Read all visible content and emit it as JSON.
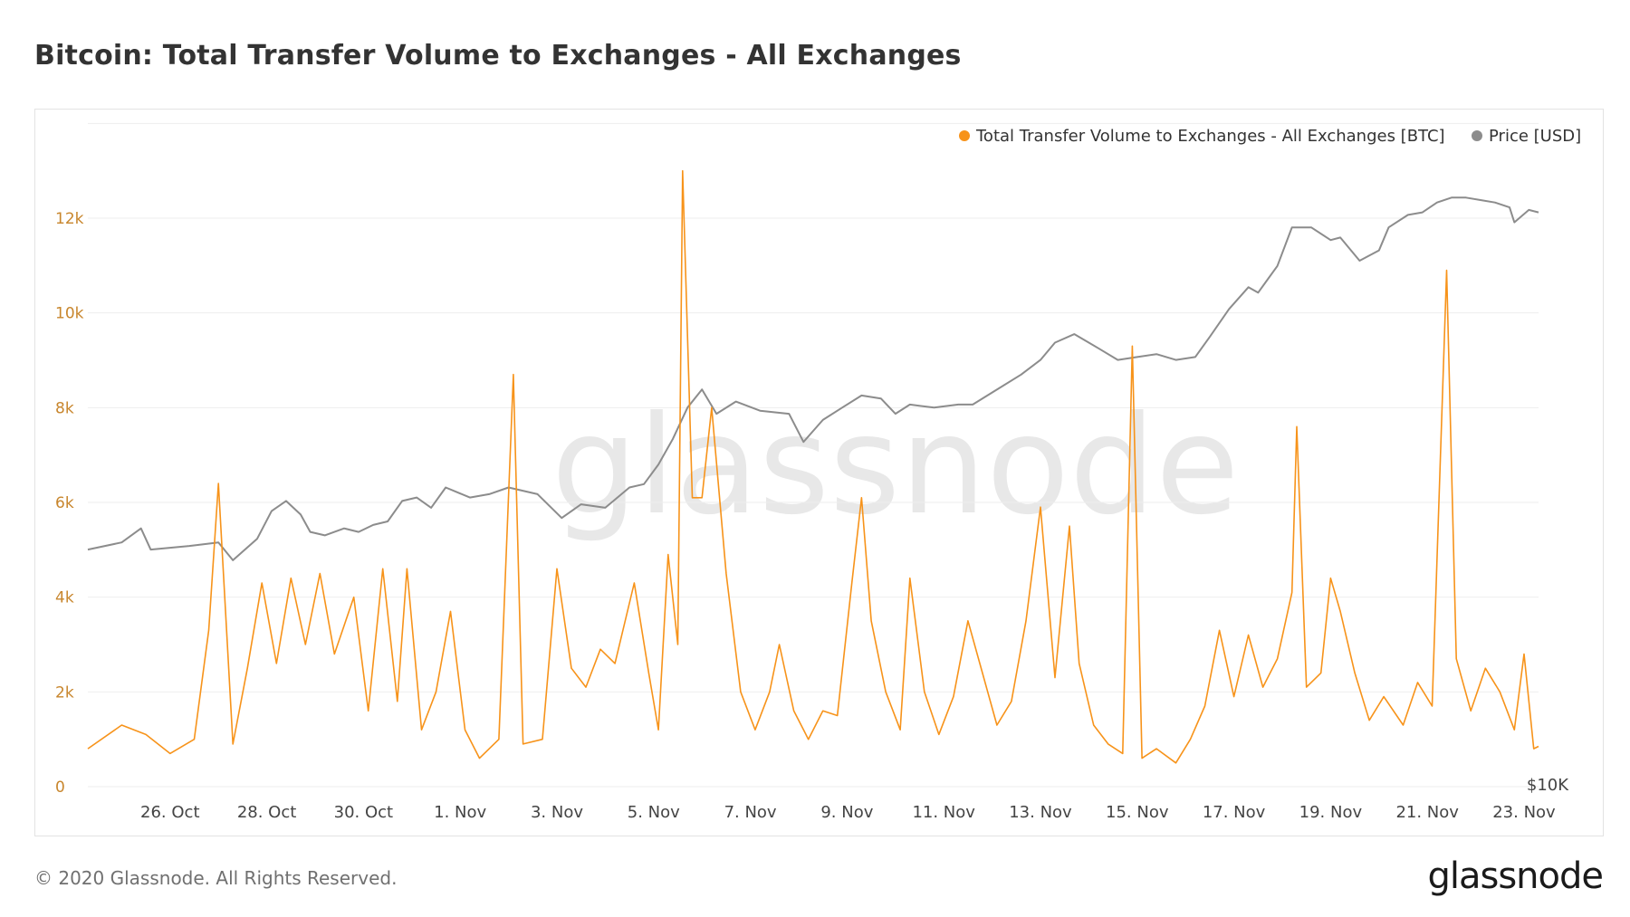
{
  "title": "Bitcoin: Total Transfer Volume to Exchanges - All Exchanges",
  "footer": "© 2020 Glassnode. All Rights Reserved.",
  "logo": "glassnode",
  "watermark": "glassnode",
  "colors": {
    "volume": "#f7931a",
    "price": "#8c8c8c",
    "grid": "#eeeeee",
    "tick_left": "#c8862d"
  },
  "chart_data": {
    "type": "line",
    "title": "Bitcoin: Total Transfer Volume to Exchanges - All Exchanges",
    "legend_position": "top-right",
    "grid": true,
    "x_ticks": [
      "26. Oct",
      "28. Oct",
      "30. Oct",
      "1. Nov",
      "3. Nov",
      "5. Nov",
      "7. Nov",
      "9. Nov",
      "11. Nov",
      "13. Nov",
      "15. Nov",
      "17. Nov",
      "19. Nov",
      "21. Nov",
      "23. Nov"
    ],
    "x_range_days": [
      24.3,
      54.3
    ],
    "y_left": {
      "ticks": [
        "0",
        "2k",
        "4k",
        "6k",
        "8k",
        "10k",
        "12k"
      ],
      "range": [
        0,
        13800
      ]
    },
    "y_right": {
      "ticks": [
        "$10K"
      ],
      "scale": "log"
    },
    "series": [
      {
        "name": "Total Transfer Volume to Exchanges - All Exchanges [BTC]",
        "axis": "left",
        "points": [
          [
            24.3,
            800
          ],
          [
            25.0,
            1300
          ],
          [
            25.5,
            1100
          ],
          [
            26.0,
            700
          ],
          [
            26.5,
            1000
          ],
          [
            26.8,
            3300
          ],
          [
            27.0,
            6400
          ],
          [
            27.3,
            900
          ],
          [
            27.6,
            2500
          ],
          [
            27.9,
            4300
          ],
          [
            28.2,
            2600
          ],
          [
            28.5,
            4400
          ],
          [
            28.8,
            3000
          ],
          [
            29.1,
            4500
          ],
          [
            29.4,
            2800
          ],
          [
            29.8,
            4000
          ],
          [
            30.1,
            1600
          ],
          [
            30.4,
            4600
          ],
          [
            30.7,
            1800
          ],
          [
            30.9,
            4600
          ],
          [
            31.2,
            1200
          ],
          [
            31.5,
            2000
          ],
          [
            31.8,
            3700
          ],
          [
            32.1,
            1200
          ],
          [
            32.4,
            600
          ],
          [
            32.8,
            1000
          ],
          [
            33.1,
            8700
          ],
          [
            33.3,
            900
          ],
          [
            33.7,
            1000
          ],
          [
            34.0,
            4600
          ],
          [
            34.3,
            2500
          ],
          [
            34.6,
            2100
          ],
          [
            34.9,
            2900
          ],
          [
            35.2,
            2600
          ],
          [
            35.6,
            4300
          ],
          [
            35.9,
            2400
          ],
          [
            36.1,
            1200
          ],
          [
            36.3,
            4900
          ],
          [
            36.5,
            3000
          ],
          [
            36.6,
            13000
          ],
          [
            36.8,
            6100
          ],
          [
            37.0,
            6100
          ],
          [
            37.2,
            8000
          ],
          [
            37.5,
            4500
          ],
          [
            37.8,
            2000
          ],
          [
            38.1,
            1200
          ],
          [
            38.4,
            2000
          ],
          [
            38.6,
            3000
          ],
          [
            38.9,
            1600
          ],
          [
            39.2,
            1000
          ],
          [
            39.5,
            1600
          ],
          [
            39.8,
            1500
          ],
          [
            40.1,
            4300
          ],
          [
            40.3,
            6100
          ],
          [
            40.5,
            3500
          ],
          [
            40.8,
            2000
          ],
          [
            41.1,
            1200
          ],
          [
            41.3,
            4400
          ],
          [
            41.6,
            2000
          ],
          [
            41.9,
            1100
          ],
          [
            42.2,
            1900
          ],
          [
            42.5,
            3500
          ],
          [
            42.8,
            2400
          ],
          [
            43.1,
            1300
          ],
          [
            43.4,
            1800
          ],
          [
            43.7,
            3500
          ],
          [
            44.0,
            5900
          ],
          [
            44.3,
            2300
          ],
          [
            44.6,
            5500
          ],
          [
            44.8,
            2600
          ],
          [
            45.1,
            1300
          ],
          [
            45.4,
            900
          ],
          [
            45.7,
            700
          ],
          [
            45.9,
            9300
          ],
          [
            46.1,
            600
          ],
          [
            46.4,
            800
          ],
          [
            46.8,
            500
          ],
          [
            47.1,
            1000
          ],
          [
            47.4,
            1700
          ],
          [
            47.7,
            3300
          ],
          [
            48.0,
            1900
          ],
          [
            48.3,
            3200
          ],
          [
            48.6,
            2100
          ],
          [
            48.9,
            2700
          ],
          [
            49.2,
            4100
          ],
          [
            49.3,
            7600
          ],
          [
            49.5,
            2100
          ],
          [
            49.8,
            2400
          ],
          [
            50.0,
            4400
          ],
          [
            50.2,
            3700
          ],
          [
            50.5,
            2400
          ],
          [
            50.8,
            1400
          ],
          [
            51.1,
            1900
          ],
          [
            51.5,
            1300
          ],
          [
            51.8,
            2200
          ],
          [
            52.1,
            1700
          ],
          [
            52.4,
            10900
          ],
          [
            52.6,
            2700
          ],
          [
            52.9,
            1600
          ],
          [
            53.2,
            2500
          ],
          [
            53.5,
            2000
          ],
          [
            53.8,
            1200
          ],
          [
            54.0,
            2800
          ],
          [
            54.2,
            800
          ],
          [
            54.3,
            850
          ]
        ]
      },
      {
        "name": "Price [USD]",
        "axis": "right",
        "points": [
          [
            24.3,
            13050
          ],
          [
            25.0,
            13150
          ],
          [
            25.4,
            13350
          ],
          [
            25.6,
            13050
          ],
          [
            26.4,
            13100
          ],
          [
            27.0,
            13150
          ],
          [
            27.3,
            12900
          ],
          [
            27.8,
            13200
          ],
          [
            28.1,
            13600
          ],
          [
            28.4,
            13750
          ],
          [
            28.7,
            13550
          ],
          [
            28.9,
            13300
          ],
          [
            29.2,
            13250
          ],
          [
            29.6,
            13350
          ],
          [
            29.9,
            13300
          ],
          [
            30.2,
            13400
          ],
          [
            30.5,
            13450
          ],
          [
            30.8,
            13750
          ],
          [
            31.1,
            13800
          ],
          [
            31.4,
            13650
          ],
          [
            31.7,
            13950
          ],
          [
            32.2,
            13800
          ],
          [
            32.6,
            13850
          ],
          [
            33.0,
            13950
          ],
          [
            33.6,
            13850
          ],
          [
            34.1,
            13500
          ],
          [
            34.5,
            13700
          ],
          [
            35.0,
            13650
          ],
          [
            35.5,
            13950
          ],
          [
            35.8,
            14000
          ],
          [
            36.1,
            14300
          ],
          [
            36.4,
            14700
          ],
          [
            36.7,
            15200
          ],
          [
            37.0,
            15500
          ],
          [
            37.3,
            15100
          ],
          [
            37.7,
            15300
          ],
          [
            38.2,
            15150
          ],
          [
            38.8,
            15100
          ],
          [
            39.1,
            14650
          ],
          [
            39.5,
            15000
          ],
          [
            39.9,
            15200
          ],
          [
            40.3,
            15400
          ],
          [
            40.7,
            15350
          ],
          [
            41.0,
            15100
          ],
          [
            41.3,
            15250
          ],
          [
            41.8,
            15200
          ],
          [
            42.3,
            15250
          ],
          [
            42.6,
            15250
          ],
          [
            43.0,
            15450
          ],
          [
            43.6,
            15750
          ],
          [
            44.0,
            16000
          ],
          [
            44.3,
            16300
          ],
          [
            44.7,
            16450
          ],
          [
            45.2,
            16200
          ],
          [
            45.6,
            16000
          ],
          [
            46.0,
            16050
          ],
          [
            46.4,
            16100
          ],
          [
            46.8,
            16000
          ],
          [
            47.2,
            16050
          ],
          [
            47.5,
            16400
          ],
          [
            47.9,
            16900
          ],
          [
            48.3,
            17300
          ],
          [
            48.5,
            17200
          ],
          [
            48.9,
            17700
          ],
          [
            49.2,
            18450
          ],
          [
            49.6,
            18450
          ],
          [
            50.0,
            18200
          ],
          [
            50.2,
            18250
          ],
          [
            50.6,
            17800
          ],
          [
            51.0,
            18000
          ],
          [
            51.2,
            18450
          ],
          [
            51.6,
            18700
          ],
          [
            51.9,
            18750
          ],
          [
            52.2,
            18950
          ],
          [
            52.5,
            19050
          ],
          [
            52.8,
            19050
          ],
          [
            53.1,
            19000
          ],
          [
            53.4,
            18950
          ],
          [
            53.7,
            18850
          ],
          [
            53.8,
            18550
          ],
          [
            54.1,
            18800
          ],
          [
            54.3,
            18750
          ]
        ]
      }
    ]
  }
}
